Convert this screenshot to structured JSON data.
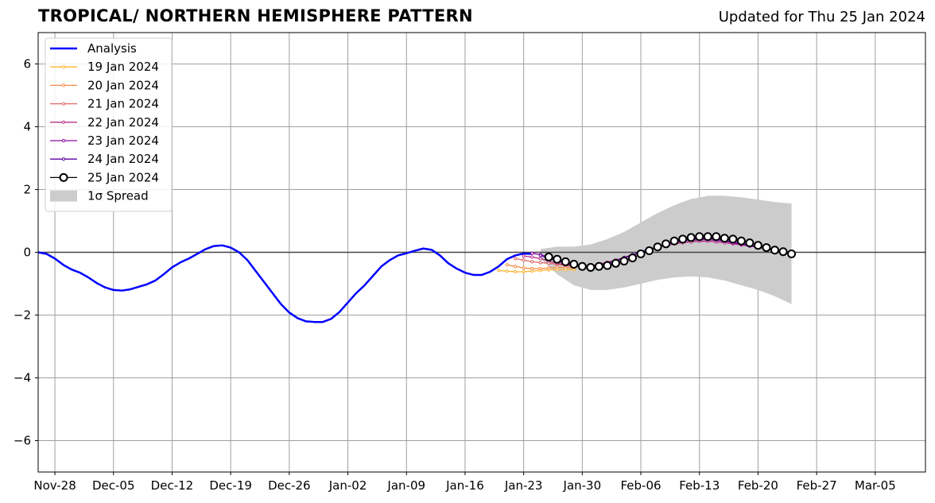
{
  "header": {
    "title": "TROPICAL/ NORTHERN HEMISPHERE PATTERN",
    "updated": "Updated for Thu 25 Jan 2024"
  },
  "chart_data": {
    "type": "line",
    "title": "TROPICAL/ NORTHERN HEMISPHERE PATTERN",
    "xlabel": "",
    "ylabel": "",
    "xlim": [
      "2023-11-26",
      "2024-03-11"
    ],
    "ylim": [
      -7,
      7
    ],
    "x_ticks": [
      "Nov-28",
      "Dec-05",
      "Dec-12",
      "Dec-19",
      "Dec-26",
      "Jan-02",
      "Jan-09",
      "Jan-16",
      "Jan-23",
      "Jan-30",
      "Feb-06",
      "Feb-13",
      "Feb-20",
      "Feb-27",
      "Mar-05"
    ],
    "y_ticks": [
      -6,
      -4,
      -2,
      0,
      2,
      4,
      6
    ],
    "grid": true,
    "zero_line": true,
    "legend_position": "top-left",
    "series": [
      {
        "name": "Analysis",
        "color": "#0000ff",
        "x": [
          "2023-11-26",
          "2023-11-27",
          "2023-11-28",
          "2023-11-29",
          "2023-11-30",
          "2023-12-01",
          "2023-12-02",
          "2023-12-03",
          "2023-12-04",
          "2023-12-05",
          "2023-12-06",
          "2023-12-07",
          "2023-12-08",
          "2023-12-09",
          "2023-12-10",
          "2023-12-11",
          "2023-12-12",
          "2023-12-13",
          "2023-12-14",
          "2023-12-15",
          "2023-12-16",
          "2023-12-17",
          "2023-12-18",
          "2023-12-19",
          "2023-12-20",
          "2023-12-21",
          "2023-12-22",
          "2023-12-23",
          "2023-12-24",
          "2023-12-25",
          "2023-12-26",
          "2023-12-27",
          "2023-12-28",
          "2023-12-29",
          "2023-12-30",
          "2023-12-31",
          "2024-01-01",
          "2024-01-02",
          "2024-01-03",
          "2024-01-04",
          "2024-01-05",
          "2024-01-06",
          "2024-01-07",
          "2024-01-08",
          "2024-01-09",
          "2024-01-10",
          "2024-01-11",
          "2024-01-12",
          "2024-01-13",
          "2024-01-14",
          "2024-01-15",
          "2024-01-16",
          "2024-01-17",
          "2024-01-18",
          "2024-01-19",
          "2024-01-20",
          "2024-01-21",
          "2024-01-22",
          "2024-01-23",
          "2024-01-24"
        ],
        "values": [
          0.0,
          -0.05,
          -0.2,
          -0.4,
          -0.55,
          -0.65,
          -0.8,
          -0.98,
          -1.12,
          -1.2,
          -1.22,
          -1.18,
          -1.1,
          -1.02,
          -0.9,
          -0.7,
          -0.48,
          -0.32,
          -0.2,
          -0.05,
          0.1,
          0.2,
          0.22,
          0.15,
          0.0,
          -0.25,
          -0.6,
          -0.95,
          -1.3,
          -1.65,
          -1.92,
          -2.1,
          -2.2,
          -2.22,
          -2.22,
          -2.12,
          -1.9,
          -1.6,
          -1.3,
          -1.05,
          -0.75,
          -0.45,
          -0.25,
          -0.1,
          -0.03,
          0.05,
          0.12,
          0.08,
          -0.1,
          -0.35,
          -0.52,
          -0.65,
          -0.72,
          -0.72,
          -0.62,
          -0.45,
          -0.22,
          -0.1,
          -0.04,
          -0.05
        ]
      },
      {
        "name": "19 Jan 2024",
        "color": "#fdb42f",
        "x": [
          "2024-01-20",
          "2024-01-21",
          "2024-01-22",
          "2024-01-23",
          "2024-01-24",
          "2024-01-25",
          "2024-01-26",
          "2024-01-27",
          "2024-01-28",
          "2024-01-29"
        ],
        "values": [
          -0.58,
          -0.6,
          -0.62,
          -0.62,
          -0.6,
          -0.58,
          -0.56,
          -0.55,
          -0.55,
          -0.55
        ]
      },
      {
        "name": "20 Jan 2024",
        "color": "#f68d45",
        "x": [
          "2024-01-21",
          "2024-01-22",
          "2024-01-23",
          "2024-01-24",
          "2024-01-25",
          "2024-01-26",
          "2024-01-27",
          "2024-01-28",
          "2024-01-29"
        ],
        "values": [
          -0.4,
          -0.45,
          -0.5,
          -0.52,
          -0.52,
          -0.5,
          -0.48,
          -0.48,
          -0.5
        ]
      },
      {
        "name": "21 Jan 2024",
        "color": "#e16462",
        "x": [
          "2024-01-22",
          "2024-01-23",
          "2024-01-24",
          "2024-01-25",
          "2024-01-26",
          "2024-01-27",
          "2024-01-28",
          "2024-01-29",
          "2024-01-30",
          "2024-01-31",
          "2024-02-01",
          "2024-02-02",
          "2024-02-03",
          "2024-02-04",
          "2024-02-05"
        ],
        "values": [
          -0.2,
          -0.25,
          -0.3,
          -0.33,
          -0.35,
          -0.38,
          -0.42,
          -0.45,
          -0.45,
          -0.42,
          -0.38,
          -0.32,
          -0.25,
          -0.17,
          -0.08
        ]
      },
      {
        "name": "22 Jan 2024",
        "color": "#b83289",
        "x": [
          "2024-01-23",
          "2024-01-24",
          "2024-01-25",
          "2024-01-26",
          "2024-01-27",
          "2024-01-28",
          "2024-01-29",
          "2024-01-30",
          "2024-01-31",
          "2024-02-01",
          "2024-02-02",
          "2024-02-03",
          "2024-02-04",
          "2024-02-05",
          "2024-02-06",
          "2024-02-07",
          "2024-02-08",
          "2024-02-09",
          "2024-02-10",
          "2024-02-11",
          "2024-02-12",
          "2024-02-13",
          "2024-02-14",
          "2024-02-15",
          "2024-02-16",
          "2024-02-17",
          "2024-02-18",
          "2024-02-19",
          "2024-02-20"
        ],
        "values": [
          -0.12,
          -0.15,
          -0.2,
          -0.28,
          -0.35,
          -0.4,
          -0.44,
          -0.45,
          -0.43,
          -0.38,
          -0.32,
          -0.25,
          -0.16,
          -0.08,
          0.0,
          0.08,
          0.15,
          0.22,
          0.27,
          0.3,
          0.33,
          0.35,
          0.35,
          0.33,
          0.3,
          0.27,
          0.23,
          0.2,
          0.18
        ]
      },
      {
        "name": "23 Jan 2024",
        "color": "#8b0aa5",
        "x": [
          "2024-01-24",
          "2024-01-25",
          "2024-01-26",
          "2024-01-27",
          "2024-01-28",
          "2024-01-29",
          "2024-01-30",
          "2024-01-31",
          "2024-02-01",
          "2024-02-02",
          "2024-02-03",
          "2024-02-04",
          "2024-02-05",
          "2024-02-06",
          "2024-02-07",
          "2024-02-08",
          "2024-02-09",
          "2024-02-10",
          "2024-02-11",
          "2024-02-12",
          "2024-02-13",
          "2024-02-14",
          "2024-02-15",
          "2024-02-16",
          "2024-02-17",
          "2024-02-18",
          "2024-02-19",
          "2024-02-20",
          "2024-02-21"
        ],
        "values": [
          -0.03,
          -0.08,
          -0.15,
          -0.25,
          -0.35,
          -0.42,
          -0.45,
          -0.44,
          -0.4,
          -0.34,
          -0.27,
          -0.18,
          -0.09,
          0.0,
          0.08,
          0.16,
          0.24,
          0.3,
          0.35,
          0.38,
          0.4,
          0.4,
          0.38,
          0.35,
          0.3,
          0.25,
          0.2,
          0.16,
          0.12
        ]
      },
      {
        "name": "24 Jan 2024",
        "color": "#5c01a6",
        "x": [
          "2024-01-25",
          "2024-01-26",
          "2024-01-27",
          "2024-01-28",
          "2024-01-29",
          "2024-01-30",
          "2024-01-31",
          "2024-02-01",
          "2024-02-02",
          "2024-02-03",
          "2024-02-04",
          "2024-02-05",
          "2024-02-06",
          "2024-02-07",
          "2024-02-08",
          "2024-02-09",
          "2024-02-10",
          "2024-02-11",
          "2024-02-12",
          "2024-02-13",
          "2024-02-14",
          "2024-02-15",
          "2024-02-16",
          "2024-02-17",
          "2024-02-18",
          "2024-02-19",
          "2024-02-20",
          "2024-02-21",
          "2024-02-22"
        ],
        "values": [
          -0.1,
          -0.18,
          -0.28,
          -0.36,
          -0.42,
          -0.45,
          -0.44,
          -0.4,
          -0.34,
          -0.26,
          -0.17,
          -0.08,
          0.02,
          0.1,
          0.18,
          0.26,
          0.33,
          0.38,
          0.42,
          0.44,
          0.44,
          0.42,
          0.38,
          0.34,
          0.28,
          0.22,
          0.16,
          0.1,
          0.05
        ]
      },
      {
        "name": "25 Jan 2024",
        "color": "#000000",
        "marker": "open-circle",
        "x": [
          "2024-01-26",
          "2024-01-27",
          "2024-01-28",
          "2024-01-29",
          "2024-01-30",
          "2024-01-31",
          "2024-02-01",
          "2024-02-02",
          "2024-02-03",
          "2024-02-04",
          "2024-02-05",
          "2024-02-06",
          "2024-02-07",
          "2024-02-08",
          "2024-02-09",
          "2024-02-10",
          "2024-02-11",
          "2024-02-12",
          "2024-02-13",
          "2024-02-14",
          "2024-02-15",
          "2024-02-16",
          "2024-02-17",
          "2024-02-18",
          "2024-02-19",
          "2024-02-20",
          "2024-02-21",
          "2024-02-22",
          "2024-02-23",
          "2024-02-24"
        ],
        "values": [
          -0.15,
          -0.22,
          -0.3,
          -0.38,
          -0.45,
          -0.48,
          -0.45,
          -0.42,
          -0.35,
          -0.28,
          -0.18,
          -0.05,
          0.05,
          0.17,
          0.27,
          0.36,
          0.42,
          0.47,
          0.5,
          0.5,
          0.5,
          0.45,
          0.42,
          0.36,
          0.3,
          0.22,
          0.15,
          0.07,
          0.02,
          -0.05
        ]
      }
    ],
    "spread": {
      "name": "1σ Spread",
      "color": "#cccccc",
      "x": [
        "2024-01-25",
        "2024-01-27",
        "2024-01-29",
        "2024-01-31",
        "2024-02-02",
        "2024-02-04",
        "2024-02-06",
        "2024-02-08",
        "2024-02-10",
        "2024-02-12",
        "2024-02-14",
        "2024-02-16",
        "2024-02-18",
        "2024-02-20",
        "2024-02-22",
        "2024-02-24"
      ],
      "upper": [
        0.1,
        0.18,
        0.18,
        0.25,
        0.42,
        0.65,
        0.95,
        1.25,
        1.5,
        1.7,
        1.8,
        1.8,
        1.75,
        1.68,
        1.6,
        1.55
      ],
      "lower": [
        -0.2,
        -0.7,
        -1.05,
        -1.2,
        -1.2,
        -1.12,
        -1.0,
        -0.88,
        -0.8,
        -0.77,
        -0.8,
        -0.9,
        -1.05,
        -1.2,
        -1.4,
        -1.65
      ]
    }
  },
  "legend": {
    "items": [
      {
        "label": "Analysis"
      },
      {
        "label": "19 Jan 2024"
      },
      {
        "label": "20 Jan 2024"
      },
      {
        "label": "21 Jan 2024"
      },
      {
        "label": "22 Jan 2024"
      },
      {
        "label": "23 Jan 2024"
      },
      {
        "label": "24 Jan 2024"
      },
      {
        "label": "25 Jan 2024"
      },
      {
        "label": "1σ Spread"
      }
    ]
  }
}
